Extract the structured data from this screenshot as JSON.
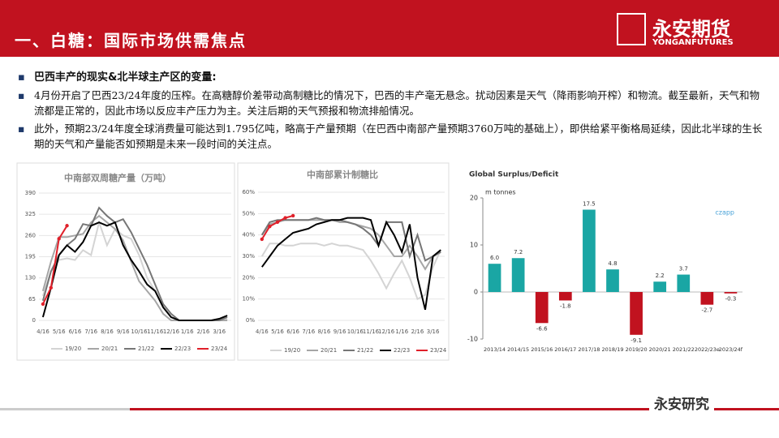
{
  "header": {
    "title": "一、白糖：国际市场供需焦点",
    "logo_cn": "永安期货",
    "logo_en": "YONGANFUTURES"
  },
  "bullets": [
    "巴西丰产的现实&北半球主产区的变量:",
    "4月份开启了巴西23/24年度的压榨。在高糖醇价差带动高制糖比的情况下，巴西的丰产毫无悬念。扰动因素是天气（降雨影响开榨）和物流。截至最新，天气和物流都是正常的，因此市场以反应丰产压力为主。关注后期的天气预报和物流排船情况。",
    "此外，预期23/24年度全球消费量可能达到1.795亿吨，略高于产量预期（在巴西中南部产量预期3760万吨的基础上），即供给紧平衡格局延续，因此北半球的生长期的天气和产量能否如预期是未来一段时间的关注点。"
  ],
  "watermark": "永安研究",
  "chart_data": [
    {
      "type": "line",
      "title": "中南部双周糖产量（万吨）",
      "categories": [
        "4/16",
        null,
        "5/16",
        null,
        "6/16",
        null,
        "7/16",
        null,
        "8/16",
        null,
        "9/16",
        null,
        "10/16",
        null,
        "11/16",
        null,
        "12/16",
        null,
        "1/16",
        null,
        "2/16",
        null,
        "3/16",
        null
      ],
      "ylim": [
        0,
        390
      ],
      "yticks": [
        0,
        65,
        130,
        195,
        260,
        325,
        390
      ],
      "series": [
        {
          "name": "19/20",
          "color": "#d4d4d4",
          "values": [
            75,
            150,
            185,
            190,
            185,
            215,
            200,
            300,
            230,
            280,
            260,
            250,
            200,
            130,
            90,
            40,
            10,
            0,
            0,
            0,
            0,
            0,
            0,
            5
          ]
        },
        {
          "name": "20/21",
          "color": "#a6a6a6",
          "values": [
            90,
            180,
            255,
            255,
            260,
            265,
            300,
            320,
            300,
            280,
            245,
            180,
            120,
            90,
            60,
            20,
            0,
            0,
            0,
            0,
            0,
            0,
            0,
            0
          ]
        },
        {
          "name": "21/22",
          "color": "#767676",
          "values": [
            60,
            150,
            200,
            230,
            250,
            295,
            290,
            345,
            320,
            300,
            310,
            270,
            220,
            170,
            110,
            50,
            20,
            0,
            0,
            0,
            0,
            0,
            0,
            10
          ]
        },
        {
          "name": "22/23",
          "color": "#000000",
          "values": [
            10,
            100,
            200,
            230,
            210,
            240,
            290,
            300,
            290,
            300,
            230,
            185,
            150,
            110,
            90,
            40,
            10,
            0,
            0,
            0,
            0,
            0,
            5,
            15
          ]
        },
        {
          "name": "23/24",
          "color": "#e0202a",
          "marker": true,
          "values": [
            50,
            100,
            250,
            290,
            null,
            null,
            null,
            null,
            null,
            null,
            null,
            null,
            null,
            null,
            null,
            null,
            null,
            null,
            null,
            null,
            null,
            null,
            null,
            null
          ]
        }
      ]
    },
    {
      "type": "line",
      "title": "中南部累计制糖比",
      "categories": [
        "4/16",
        null,
        "5/16",
        null,
        "6/16",
        null,
        "7/16",
        null,
        "8/16",
        null,
        "9/16",
        null,
        "10/16",
        null,
        "11/16",
        null,
        "12/16",
        null,
        "1/16",
        null,
        "2/16",
        null,
        "3/16",
        null
      ],
      "ylim": [
        0,
        60
      ],
      "yticks": [
        {
          "value": 0,
          "label": "0%"
        },
        {
          "value": 10,
          "label": "10%"
        },
        {
          "value": 20,
          "label": "20%"
        },
        {
          "value": 30,
          "label": "30%"
        },
        {
          "value": 40,
          "label": "40%"
        },
        {
          "value": 50,
          "label": "50%"
        },
        {
          "value": 60,
          "label": "60%"
        }
      ],
      "series": [
        {
          "name": "19/20",
          "color": "#d4d4d4",
          "values": [
            30,
            36,
            36,
            35,
            35,
            36,
            36,
            36,
            35,
            36,
            35,
            35,
            34,
            33,
            28,
            22,
            15,
            22,
            28,
            20,
            10,
            12,
            25,
            33
          ]
        },
        {
          "name": "20/21",
          "color": "#a6a6a6",
          "values": [
            40,
            45,
            46,
            47,
            47,
            47,
            47,
            47,
            47,
            47,
            46,
            46,
            45,
            44,
            43,
            40,
            35,
            30,
            30,
            35,
            30,
            24,
            30,
            32
          ]
        },
        {
          "name": "21/22",
          "color": "#767676",
          "values": [
            40,
            46,
            47,
            47,
            47,
            47,
            47,
            48,
            47,
            47,
            47,
            46,
            45,
            43,
            40,
            35,
            46,
            46,
            46,
            30,
            40,
            28,
            30,
            32
          ]
        },
        {
          "name": "22/23",
          "color": "#000000",
          "values": [
            25,
            30,
            35,
            38,
            41,
            42,
            43,
            45,
            46,
            47,
            47,
            48,
            48,
            48,
            47,
            35,
            46,
            40,
            32,
            45,
            20,
            5,
            30,
            33
          ]
        },
        {
          "name": "23/24",
          "color": "#e0202a",
          "marker": true,
          "values": [
            38,
            44,
            46,
            48,
            49,
            null,
            null,
            null,
            null,
            null,
            null,
            null,
            null,
            null,
            null,
            null,
            null,
            null,
            null,
            null,
            null,
            null,
            null,
            null
          ]
        }
      ]
    },
    {
      "type": "bar",
      "title": "Global Surplus/Deficit",
      "subtitle": "m tonnes",
      "source": "czapp",
      "categories": [
        "2013/14",
        "2014/15",
        "2015/16",
        "2016/17",
        "2017/18",
        "2018/19",
        "2019/20",
        "2020/21",
        "2021/22",
        "2022/23e",
        "2023/24f"
      ],
      "values": [
        6.0,
        7.2,
        -6.6,
        -1.8,
        17.5,
        4.8,
        -9.1,
        2.2,
        3.7,
        -2.7,
        -0.3
      ],
      "value_labels": [
        "6.0",
        "7.2",
        "-6.6",
        "-1.8",
        "17.5",
        "4.8",
        "-9.1",
        "2.2",
        "3.7",
        "-2.7",
        "-0.3"
      ],
      "colors": [
        "#1aa6a4",
        "#1aa6a4",
        "#c1121f",
        "#c1121f",
        "#1aa6a4",
        "#1aa6a4",
        "#c1121f",
        "#1aa6a4",
        "#1aa6a4",
        "#c1121f",
        "#c1121f"
      ],
      "ylim": [
        -10,
        20
      ],
      "yticks": [
        -10,
        0,
        10,
        20
      ]
    }
  ]
}
